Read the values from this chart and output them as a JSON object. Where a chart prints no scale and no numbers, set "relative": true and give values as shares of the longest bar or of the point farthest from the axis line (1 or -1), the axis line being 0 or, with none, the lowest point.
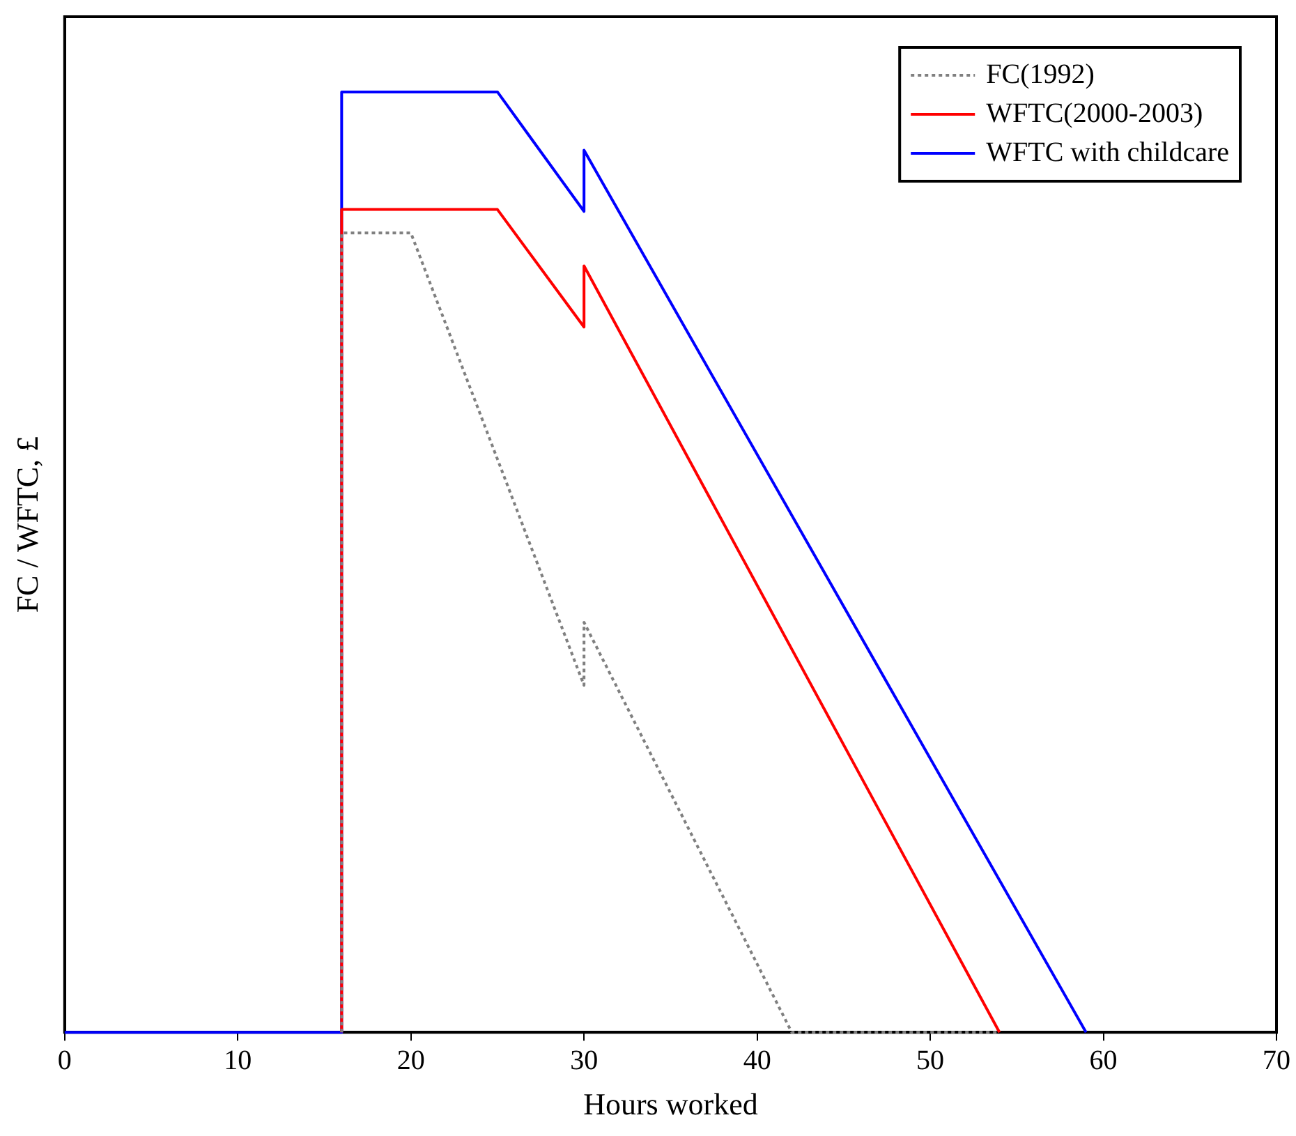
{
  "chart_data": {
    "type": "line",
    "xlabel": "Hours worked",
    "ylabel": "FC / WFTC, £",
    "relative": true,
    "xlim": [
      0,
      70
    ],
    "xticks": [
      0,
      10,
      20,
      30,
      40,
      50,
      60,
      70
    ],
    "grid": false,
    "legend": "top right",
    "marker": "none",
    "series": [
      {
        "name": "FC(1992)",
        "color": "#808080",
        "line_style": "dotted",
        "x": [
          16,
          16,
          20,
          30,
          30,
          42,
          54
        ],
        "values": [
          0,
          0.85,
          0.85,
          0.369,
          0.436,
          0,
          0
        ]
      },
      {
        "name": "WFTC(2000-2003)",
        "color": "#ff0000",
        "line_style": "solid",
        "x": [
          16,
          16,
          25,
          30,
          30,
          54
        ],
        "values": [
          0,
          0.875,
          0.875,
          0.75,
          0.815,
          0
        ]
      },
      {
        "name": "WFTC with childcare",
        "color": "#0000ff",
        "line_style": "solid",
        "x": [
          0,
          16,
          16,
          25,
          30,
          30,
          59
        ],
        "values": [
          0,
          0,
          1,
          1,
          0.873,
          0.938,
          0
        ]
      }
    ]
  }
}
